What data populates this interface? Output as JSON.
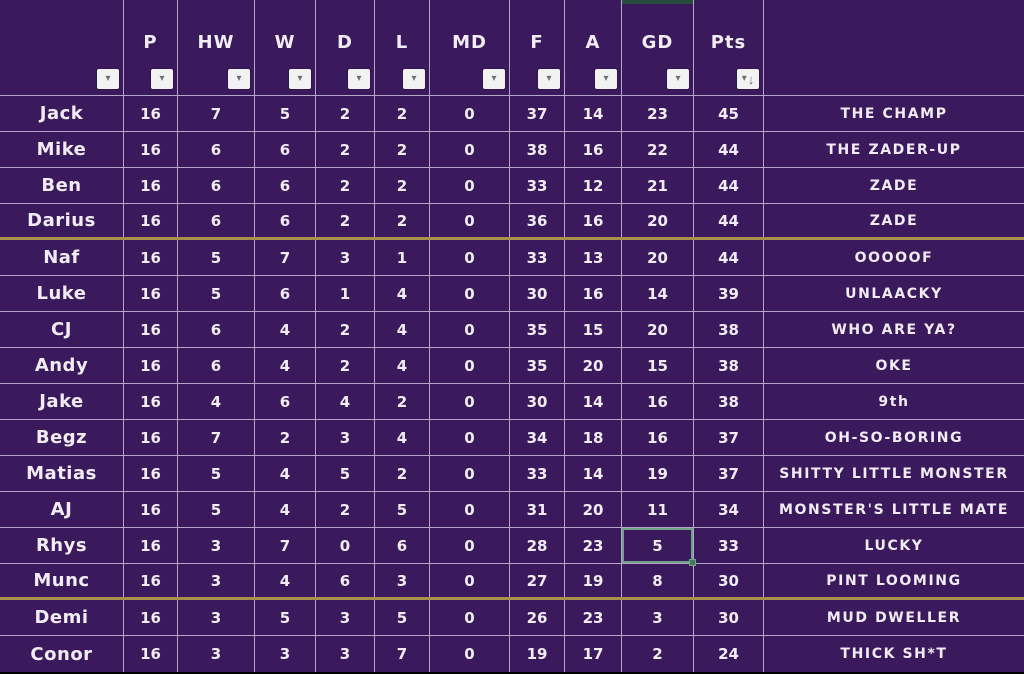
{
  "sheet": {
    "header": {
      "filter_icon": "▾",
      "sort_desc_icon": "↓",
      "columns": [
        {
          "id": "name",
          "label": "",
          "filter": true
        },
        {
          "id": "p",
          "label": "P",
          "filter": true
        },
        {
          "id": "hw",
          "label": "HW",
          "filter": true
        },
        {
          "id": "w",
          "label": "W",
          "filter": true
        },
        {
          "id": "d",
          "label": "D",
          "filter": true
        },
        {
          "id": "l",
          "label": "L",
          "filter": true
        },
        {
          "id": "md",
          "label": "MD",
          "filter": true
        },
        {
          "id": "f",
          "label": "F",
          "filter": true
        },
        {
          "id": "a",
          "label": "A",
          "filter": true
        },
        {
          "id": "gd",
          "label": "GD",
          "filter": true,
          "column_marker": true
        },
        {
          "id": "pts",
          "label": "Pts",
          "filter": true,
          "sorted": "desc"
        },
        {
          "id": "comment",
          "label": "",
          "filter": false
        }
      ]
    },
    "rows": [
      {
        "name": "Jack",
        "p": "16",
        "hw": "7",
        "w": "5",
        "d": "2",
        "l": "2",
        "md": "0",
        "f": "37",
        "a": "14",
        "gd": "23",
        "pts": "45",
        "comment": "THE CHAMP"
      },
      {
        "name": "Mike",
        "p": "16",
        "hw": "6",
        "w": "6",
        "d": "2",
        "l": "2",
        "md": "0",
        "f": "38",
        "a": "16",
        "gd": "22",
        "pts": "44",
        "comment": "THE ZADER-UP"
      },
      {
        "name": "Ben",
        "p": "16",
        "hw": "6",
        "w": "6",
        "d": "2",
        "l": "2",
        "md": "0",
        "f": "33",
        "a": "12",
        "gd": "21",
        "pts": "44",
        "comment": "ZADE"
      },
      {
        "name": "Darius",
        "p": "16",
        "hw": "6",
        "w": "6",
        "d": "2",
        "l": "2",
        "md": "0",
        "f": "36",
        "a": "16",
        "gd": "20",
        "pts": "44",
        "comment": "ZADE"
      },
      {
        "name": "Naf",
        "p": "16",
        "hw": "5",
        "w": "7",
        "d": "3",
        "l": "1",
        "md": "0",
        "f": "33",
        "a": "13",
        "gd": "20",
        "pts": "44",
        "comment": "OOOOOF"
      },
      {
        "name": "Luke",
        "p": "16",
        "hw": "5",
        "w": "6",
        "d": "1",
        "l": "4",
        "md": "0",
        "f": "30",
        "a": "16",
        "gd": "14",
        "pts": "39",
        "comment": "UNLAACKY"
      },
      {
        "name": "CJ",
        "p": "16",
        "hw": "6",
        "w": "4",
        "d": "2",
        "l": "4",
        "md": "0",
        "f": "35",
        "a": "15",
        "gd": "20",
        "pts": "38",
        "comment": "WHO ARE YA?"
      },
      {
        "name": "Andy",
        "p": "16",
        "hw": "6",
        "w": "4",
        "d": "2",
        "l": "4",
        "md": "0",
        "f": "35",
        "a": "20",
        "gd": "15",
        "pts": "38",
        "comment": "OKE"
      },
      {
        "name": "Jake",
        "p": "16",
        "hw": "4",
        "w": "6",
        "d": "4",
        "l": "2",
        "md": "0",
        "f": "30",
        "a": "14",
        "gd": "16",
        "pts": "38",
        "comment": "9th"
      },
      {
        "name": "Begz",
        "p": "16",
        "hw": "7",
        "w": "2",
        "d": "3",
        "l": "4",
        "md": "0",
        "f": "34",
        "a": "18",
        "gd": "16",
        "pts": "37",
        "comment": "OH-SO-BORING"
      },
      {
        "name": "Matias",
        "p": "16",
        "hw": "5",
        "w": "4",
        "d": "5",
        "l": "2",
        "md": "0",
        "f": "33",
        "a": "14",
        "gd": "19",
        "pts": "37",
        "comment": "SHITTY LITTLE MONSTER"
      },
      {
        "name": "AJ",
        "p": "16",
        "hw": "5",
        "w": "4",
        "d": "2",
        "l": "5",
        "md": "0",
        "f": "31",
        "a": "20",
        "gd": "11",
        "pts": "34",
        "comment": "MONSTER'S LITTLE MATE"
      },
      {
        "name": "Rhys",
        "p": "16",
        "hw": "3",
        "w": "7",
        "d": "0",
        "l": "6",
        "md": "0",
        "f": "28",
        "a": "23",
        "gd": "5",
        "pts": "33",
        "comment": "LUCKY"
      },
      {
        "name": "Munc",
        "p": "16",
        "hw": "3",
        "w": "4",
        "d": "6",
        "l": "3",
        "md": "0",
        "f": "27",
        "a": "19",
        "gd": "8",
        "pts": "30",
        "comment": "PINT LOOMING"
      },
      {
        "name": "Demi",
        "p": "16",
        "hw": "3",
        "w": "5",
        "d": "3",
        "l": "5",
        "md": "0",
        "f": "26",
        "a": "23",
        "gd": "3",
        "pts": "30",
        "comment": "MUD DWELLER"
      },
      {
        "name": "Conor",
        "p": "16",
        "hw": "3",
        "w": "3",
        "d": "3",
        "l": "7",
        "md": "0",
        "f": "19",
        "a": "17",
        "gd": "2",
        "pts": "24",
        "comment": "THICK SH*T"
      }
    ],
    "gold_separator_after": [
      "Darius",
      "Munc"
    ],
    "selection": {
      "row_name": "Rhys",
      "column": "gd",
      "value": "5"
    }
  },
  "colors": {
    "background": "#3a195c",
    "gridline": "#b5a6c9",
    "gold_line": "#a8914e",
    "text": "#f2ecf7",
    "filter_button_bg": "#f2f2f2",
    "filter_glyph": "#6e6e6e",
    "selection_border": "#6fa287",
    "selection_handle": "#3f7a5c",
    "column_marker": "#254c3d",
    "bottom_bar": "#000000"
  }
}
